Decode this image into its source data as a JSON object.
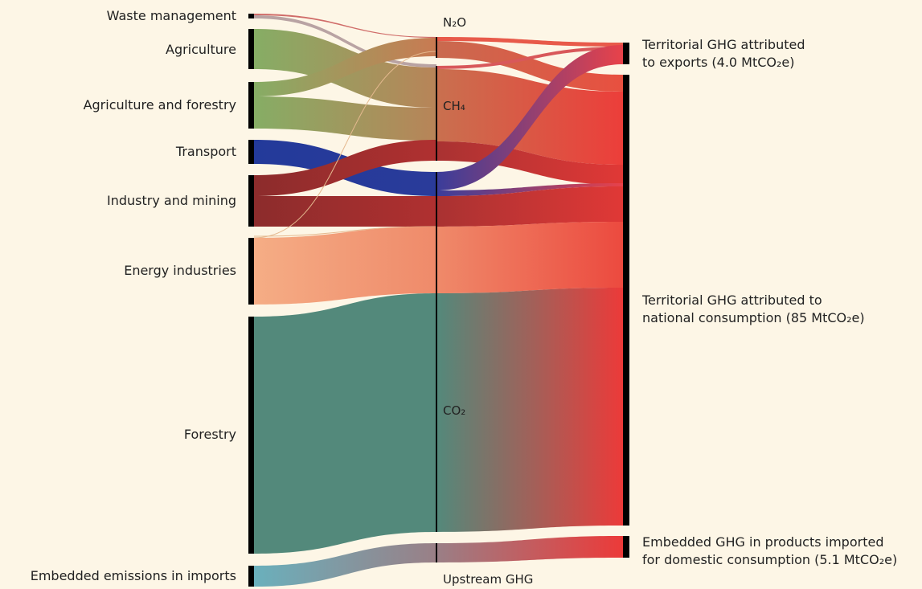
{
  "diagram": {
    "background": "#fdf6e6",
    "sources": [
      {
        "label": "Waste management",
        "color": "#b9a3a3"
      },
      {
        "label": "Agriculture",
        "color": "#86ad65"
      },
      {
        "label": "Agriculture and forestry",
        "color": "#86ad65"
      },
      {
        "label": "Transport",
        "color": "#233a9a"
      },
      {
        "label": "Industry and mining",
        "color": "#8c2c2c"
      },
      {
        "label": "Energy industries",
        "color": "#f5ad85"
      },
      {
        "label": "Forestry",
        "color": "#53897b"
      },
      {
        "label": "Embedded emissions in imports",
        "color": "#6ab0bc"
      }
    ],
    "gases": [
      {
        "label": "N₂O"
      },
      {
        "label": "CH₄"
      },
      {
        "label": "CO₂"
      },
      {
        "label": "Upstream GHG"
      }
    ],
    "targets": [
      {
        "line1": "Territorial GHG attributed",
        "line2": "to exports (4.0 MtCO₂e)"
      },
      {
        "line1": "Territorial GHG attributed to",
        "line2": "national consumption (85 MtCO₂e)"
      },
      {
        "line1": "Embedded GHG in products imported",
        "line2": "for domestic consumption (5.1 MtCO₂e)"
      }
    ],
    "colors": {
      "target": "#ec3a39",
      "node_bar": "#000000"
    }
  }
}
